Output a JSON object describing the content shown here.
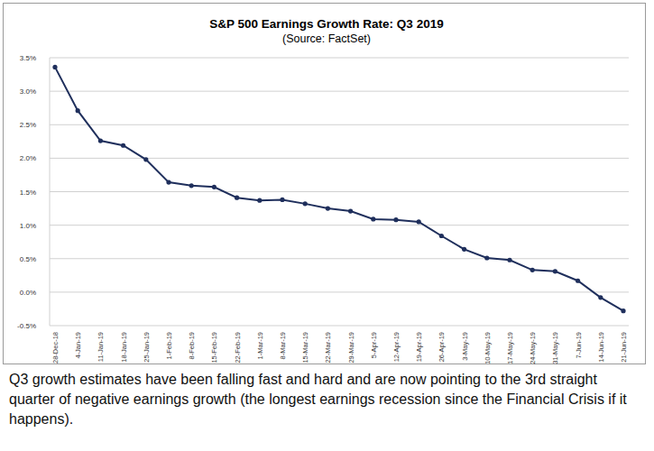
{
  "chart_data": {
    "type": "line",
    "title": "S&P 500 Earnings Growth Rate: Q3 2019",
    "subtitle": "(Source: FactSet)",
    "caption": "Q3 growth estimates have been falling fast and hard and are now pointing to the 3rd straight quarter of negative earnings growth (the longest earnings recession since the Financial Crisis if it happens).",
    "categories": [
      "28-Dec-18",
      "4-Jan-19",
      "11-Jan-19",
      "18-Jan-19",
      "25-Jan-19",
      "1-Feb-19",
      "8-Feb-19",
      "15-Feb-19",
      "22-Feb-19",
      "1-Mar-19",
      "8-Mar-19",
      "15-Mar-19",
      "22-Mar-19",
      "29-Mar-19",
      "5-Apr-19",
      "12-Apr-19",
      "19-Apr-19",
      "26-Apr-19",
      "3-May-19",
      "10-May-19",
      "17-May-19",
      "24-May-19",
      "31-May-19",
      "7-Jun-19",
      "14-Jun-19",
      "21-Jun-19"
    ],
    "values": [
      3.36,
      2.71,
      2.26,
      2.19,
      1.98,
      1.64,
      1.59,
      1.57,
      1.41,
      1.37,
      1.38,
      1.32,
      1.25,
      1.21,
      1.09,
      1.08,
      1.05,
      0.84,
      0.64,
      0.51,
      0.48,
      0.33,
      0.31,
      0.17,
      -0.08,
      -0.28
    ],
    "color": "#1f2f5c",
    "marker": "circle",
    "line_style": "solid",
    "ylim": [
      -0.5,
      3.5
    ],
    "yticks": [
      {
        "value": -0.5,
        "label": "-0.5%"
      },
      {
        "value": 0,
        "label": "0.0%"
      },
      {
        "value": 0.5,
        "label": "0.5%"
      },
      {
        "value": 1,
        "label": "1.0%"
      },
      {
        "value": 1.5,
        "label": "1.5%"
      },
      {
        "value": 2,
        "label": "2.0%"
      },
      {
        "value": 2.5,
        "label": "2.5%"
      },
      {
        "value": 3,
        "label": "3.0%"
      },
      {
        "value": 3.5,
        "label": "3.5%"
      }
    ],
    "grid": true
  }
}
